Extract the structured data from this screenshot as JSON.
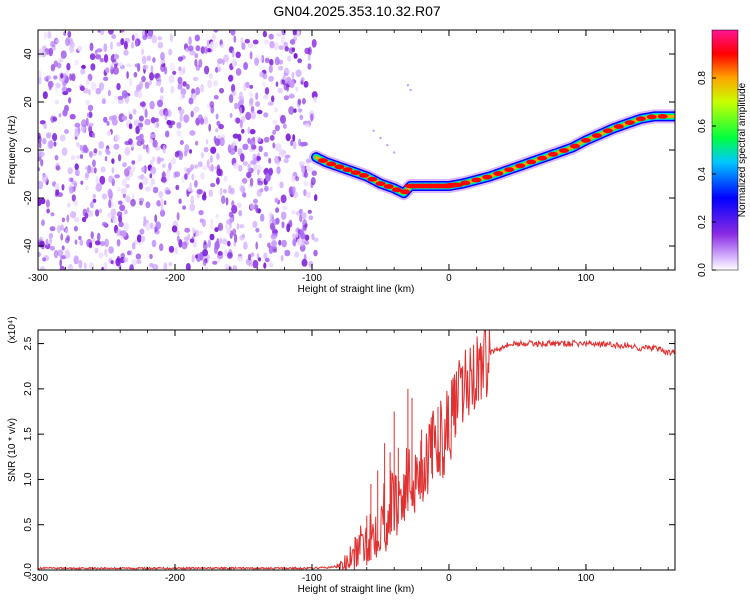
{
  "title": "GN04.2025.353.10.32.R07",
  "spectrogram": {
    "type": "heatmap",
    "xlabel": "Height of straight line (km)",
    "ylabel": "Frequency (Hz)",
    "xlim": [
      -300,
      165
    ],
    "ylim": [
      -50,
      50
    ],
    "xticks": [
      "-300",
      "-200",
      "-100",
      "0",
      "100"
    ],
    "xtick_values": [
      -300,
      -200,
      -100,
      0,
      100
    ],
    "yticks": [
      "40",
      "20",
      "0",
      "-20",
      "-40"
    ],
    "ytick_values": [
      40,
      20,
      0,
      -20,
      -40
    ],
    "noise_region": [
      -300,
      -97
    ],
    "ridge_x": [
      -97,
      -90,
      -80,
      -70,
      -60,
      -50,
      -40,
      -33,
      -28,
      -20,
      -10,
      0,
      10,
      20,
      30,
      40,
      50,
      60,
      70,
      80,
      90,
      100,
      110,
      120,
      130,
      140,
      150,
      160,
      165
    ],
    "ridge_y": [
      -3,
      -5,
      -7,
      -9,
      -11,
      -14,
      -16,
      -18,
      -15,
      -15,
      -15,
      -15,
      -14,
      -12.5,
      -11,
      -9,
      -7,
      -5,
      -3,
      -1,
      1,
      4,
      6.5,
      9,
      11,
      13,
      14,
      14,
      14
    ],
    "colorbar": {
      "label": "Normalized spectral amplitude",
      "ticks": [
        "0.0",
        "0.2",
        "0.4",
        "0.6",
        "0.8"
      ],
      "tick_values": [
        0.0,
        0.2,
        0.4,
        0.6,
        0.8
      ],
      "range": [
        0,
        1
      ],
      "colors": [
        "#ffffff",
        "#d9b8ff",
        "#8a2be2",
        "#0000ff",
        "#00c8ff",
        "#00ff40",
        "#c8ff00",
        "#ffa500",
        "#ff0000",
        "#ff1493"
      ]
    }
  },
  "snr": {
    "type": "line",
    "xlabel": "Height of straight line (km)",
    "ylabel": "SNR (10 * v/v)",
    "multiplier": "(x10⁴)",
    "xlim": [
      -300,
      165
    ],
    "ylim": [
      0,
      2.65
    ],
    "xticks": [
      "-300",
      "-200",
      "-100",
      "0",
      "100"
    ],
    "xtick_values": [
      -300,
      -200,
      -100,
      0,
      100
    ],
    "yticks": [
      "0.0",
      "0.5",
      "1.0",
      "1.5",
      "2.0",
      "2.5"
    ],
    "ytick_values": [
      0.0,
      0.5,
      1.0,
      1.5,
      2.0,
      2.5
    ],
    "color": "#e03030",
    "x": [
      -300,
      -250,
      -200,
      -150,
      -100,
      -85,
      -75,
      -70,
      -65,
      -60,
      -55,
      -50,
      -45,
      -40,
      -35,
      -30,
      -25,
      -20,
      -15,
      -10,
      -5,
      0,
      5,
      10,
      15,
      20,
      25,
      30,
      40,
      50,
      60,
      70,
      80,
      90,
      100,
      110,
      120,
      130,
      140,
      150,
      160,
      165
    ],
    "y": [
      0.02,
      0.02,
      0.02,
      0.02,
      0.02,
      0.03,
      0.07,
      0.15,
      0.25,
      0.35,
      0.45,
      0.55,
      0.65,
      0.75,
      0.85,
      0.95,
      1.05,
      1.15,
      1.25,
      1.35,
      1.45,
      1.6,
      1.8,
      1.95,
      2.1,
      2.2,
      2.3,
      2.4,
      2.48,
      2.5,
      2.5,
      2.5,
      2.5,
      2.5,
      2.5,
      2.5,
      2.48,
      2.48,
      2.45,
      2.45,
      2.4,
      2.4
    ],
    "spikes": [
      {
        "x": -60,
        "y": 0.6
      },
      {
        "x": -57,
        "y": 0.95
      },
      {
        "x": -52,
        "y": 1.1
      },
      {
        "x": -47,
        "y": 1.4
      },
      {
        "x": -43,
        "y": 1.3
      },
      {
        "x": -40,
        "y": 1.75
      },
      {
        "x": -37,
        "y": 1.35
      },
      {
        "x": -30,
        "y": 2.0
      },
      {
        "x": -27,
        "y": 1.9
      },
      {
        "x": -20,
        "y": 1.55
      },
      {
        "x": -12,
        "y": 1.65
      },
      {
        "x": -8,
        "y": 1.8
      },
      {
        "x": 5,
        "y": 2.1
      },
      {
        "x": 10,
        "y": 2.25
      }
    ]
  }
}
